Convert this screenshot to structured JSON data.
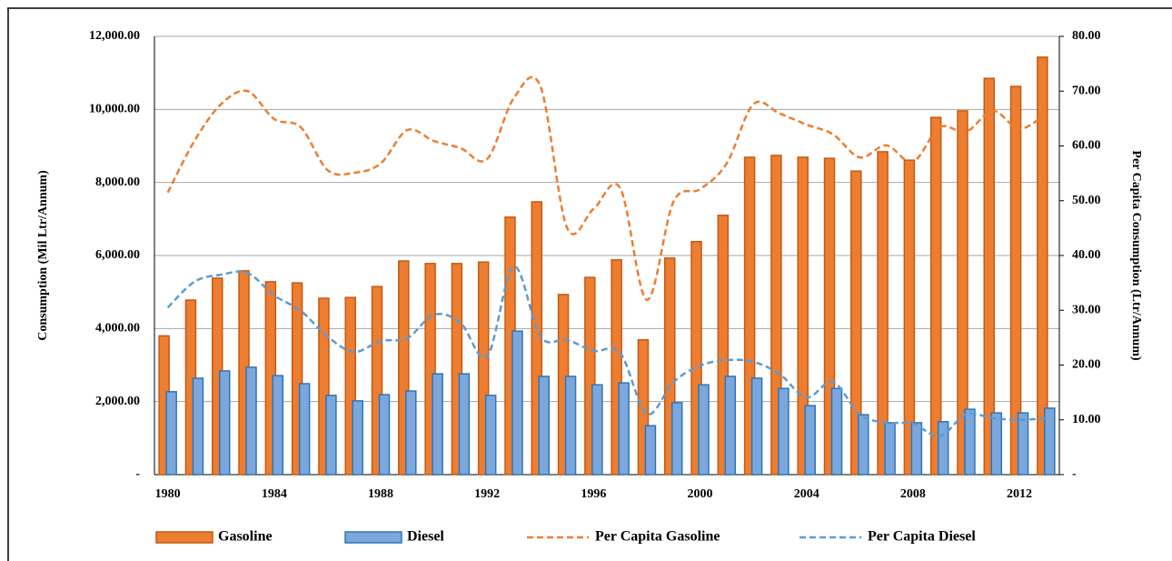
{
  "chart_data": {
    "type": "bar",
    "y_label": "Consumption (Mil Ltr/Annum)",
    "y2_label": "Per Capita Consumption (Ltr/Annum)",
    "categories": [
      "1980",
      null,
      null,
      null,
      "1984",
      null,
      null,
      null,
      "1988",
      null,
      null,
      null,
      "1992",
      null,
      null,
      null,
      "1996",
      null,
      null,
      null,
      "2000",
      null,
      null,
      null,
      "2004",
      null,
      null,
      null,
      "2008",
      null,
      null,
      null,
      "2012",
      null
    ],
    "ylim": [
      0,
      12000
    ],
    "yticks": [
      {
        "value": 0,
        "label": "-"
      },
      {
        "value": 2000,
        "label": "2,000.00"
      },
      {
        "value": 4000,
        "label": "4,000.00"
      },
      {
        "value": 6000,
        "label": "6,000.00"
      },
      {
        "value": 8000,
        "label": "8,000.00"
      },
      {
        "value": 10000,
        "label": "10,000.00"
      },
      {
        "value": 12000,
        "label": "12,000.00"
      }
    ],
    "y2lim": [
      0,
      80
    ],
    "y2ticks": [
      {
        "value": 0,
        "label": "-"
      },
      {
        "value": 10,
        "label": "10.00"
      },
      {
        "value": 20,
        "label": "20.00"
      },
      {
        "value": 30,
        "label": "30.00"
      },
      {
        "value": 40,
        "label": "40.00"
      },
      {
        "value": 50,
        "label": "50.00"
      },
      {
        "value": 60,
        "label": "60.00"
      },
      {
        "value": 70,
        "label": "70.00"
      },
      {
        "value": 80,
        "label": "80.00"
      }
    ],
    "grid": true,
    "legend": "bottom",
    "series": [
      {
        "name": "Gasoline",
        "type": "bar",
        "color": "#ed7d31",
        "values": [
          3800,
          4780,
          5380,
          5580,
          5280,
          5250,
          4830,
          4850,
          5150,
          5850,
          5780,
          5780,
          5820,
          7050,
          7470,
          4930,
          5400,
          5880,
          3690,
          5930,
          6380,
          7100,
          8690,
          8740,
          8690,
          8660,
          8310,
          8840,
          8610,
          9780,
          9960,
          10850,
          10630,
          11430
        ]
      },
      {
        "name": "Diesel",
        "type": "bar",
        "color": "#7ba7dc",
        "values": [
          2270,
          2640,
          2840,
          2940,
          2710,
          2490,
          2170,
          2020,
          2190,
          2290,
          2760,
          2760,
          2170,
          3930,
          2690,
          2690,
          2460,
          2510,
          1340,
          1970,
          2460,
          2690,
          2640,
          2360,
          1890,
          2360,
          1640,
          1420,
          1420,
          1450,
          1790,
          1690,
          1690,
          1820
        ]
      },
      {
        "name": "Per Capita Gasoline",
        "type": "line",
        "axis": "y2",
        "color": "#ed7d31",
        "values": [
          51.5,
          60.9,
          67.6,
          70.0,
          64.9,
          63.4,
          55.6,
          55.1,
          56.8,
          62.9,
          60.9,
          59.6,
          57.6,
          68.7,
          70.9,
          45.1,
          48.5,
          52.3,
          31.9,
          49.8,
          52.1,
          56.8,
          67.6,
          65.9,
          63.9,
          62.1,
          57.9,
          60.1,
          57.1,
          63.4,
          62.6,
          66.4,
          63.1,
          65.9
        ]
      },
      {
        "name": "Per Capita Diesel",
        "type": "line",
        "axis": "y2",
        "color": "#5b9bd5",
        "values": [
          30.5,
          35.2,
          36.5,
          36.8,
          32.7,
          29.9,
          25.2,
          22.4,
          24.4,
          24.9,
          29.2,
          27.7,
          21.6,
          38.0,
          25.2,
          24.6,
          22.6,
          22.2,
          11.1,
          16.9,
          19.9,
          20.9,
          20.6,
          18.3,
          14.1,
          16.9,
          10.95,
          9.5,
          9.3,
          7.0,
          11.0,
          10.3,
          10.0,
          10.3
        ]
      }
    ]
  }
}
